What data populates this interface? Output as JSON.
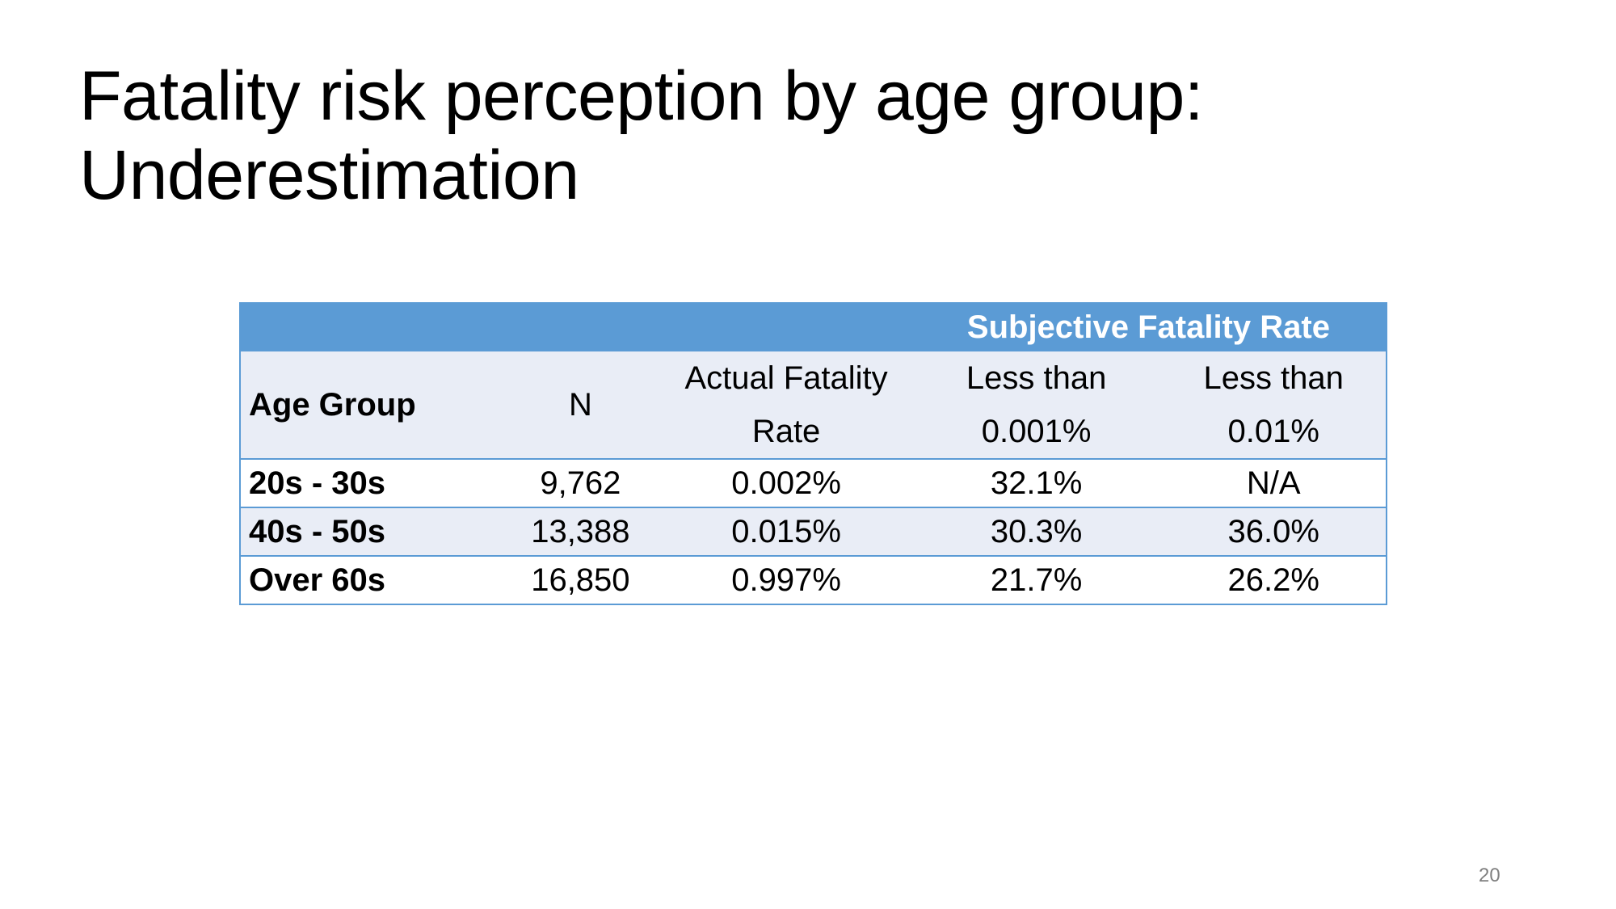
{
  "title": {
    "line1": "Fatality risk perception by age group:",
    "line2": "Underestimation"
  },
  "table": {
    "group_header": "Subjective Fatality Rate",
    "columns": {
      "age_group": "Age Group",
      "n": "N",
      "actual_line1": "Actual Fatality",
      "actual_line2": "Rate",
      "subj1_line1": "Less than",
      "subj1_line2": "0.001%",
      "subj2_line1": "Less than",
      "subj2_line2": "0.01%"
    },
    "rows": [
      {
        "age_group": "20s - 30s",
        "n": "9,762",
        "actual": "0.002%",
        "subj1": "32.1%",
        "subj2": "N/A"
      },
      {
        "age_group": "40s - 50s",
        "n": "13,388",
        "actual": "0.015%",
        "subj1": "30.3%",
        "subj2": "36.0%"
      },
      {
        "age_group": "Over 60s",
        "n": "16,850",
        "actual": "0.997%",
        "subj1": "21.7%",
        "subj2": "26.2%"
      }
    ],
    "colors": {
      "header_fill": "#5b9bd5",
      "band_fill": "#e9edf6",
      "border": "#5b9bd5"
    }
  },
  "page_number": "20"
}
